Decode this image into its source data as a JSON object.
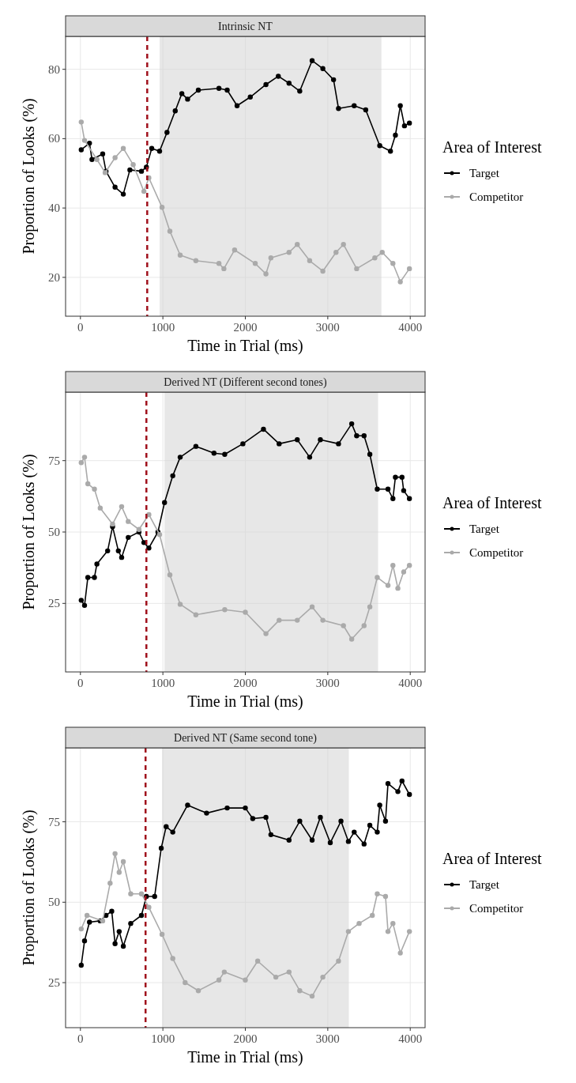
{
  "chart_data": [
    {
      "type": "line",
      "title": "Intrinsic NT",
      "xlabel": "Time in Trial (ms)",
      "ylabel": "Proportion of Looks (%)",
      "legend_title": "Area of Interest",
      "legend": "right",
      "grid": true,
      "marker": "circle",
      "xlim": [
        -180,
        4180
      ],
      "ylim": [
        8.8,
        89.5
      ],
      "xticks": [
        0,
        1000,
        2000,
        3000,
        4000
      ],
      "yticks": [
        20,
        40,
        60,
        80
      ],
      "ref_lines": [
        {
          "axis": "x",
          "value": 810,
          "color": "#a0101c",
          "line_style": "dashed"
        }
      ],
      "bands": [
        {
          "axis": "x",
          "from": 960,
          "to": 3650,
          "color": "#d4d4d4"
        }
      ],
      "series": [
        {
          "name": "Target",
          "color": "#000000",
          "x": [
            10,
            110,
            140,
            270,
            310,
            420,
            520,
            600,
            740,
            800,
            865,
            960,
            1050,
            1150,
            1230,
            1300,
            1430,
            1680,
            1780,
            1900,
            2060,
            2250,
            2400,
            2530,
            2660,
            2810,
            2940,
            3070,
            3130,
            3320,
            3460,
            3630,
            3760,
            3820,
            3880,
            3930,
            3990
          ],
          "values": [
            56.8,
            58.7,
            54,
            55.6,
            50.6,
            46,
            44,
            51,
            50.6,
            51.8,
            57.2,
            56.4,
            61.8,
            68,
            73,
            71.4,
            74,
            74.5,
            74,
            69.5,
            72,
            75.6,
            78,
            76,
            73.7,
            82.5,
            80.2,
            77,
            68.7,
            69.5,
            68.3,
            58,
            56.4,
            61,
            69.5,
            63.7,
            64.5
          ]
        },
        {
          "name": "Competitor",
          "color": "#aaaaaa",
          "x": [
            10,
            50,
            200,
            300,
            420,
            520,
            640,
            770,
            830,
            990,
            1085,
            1210,
            1400,
            1680,
            1740,
            1870,
            2120,
            2250,
            2310,
            2530,
            2630,
            2780,
            2940,
            3100,
            3190,
            3350,
            3570,
            3660,
            3790,
            3880,
            3990
          ],
          "values": [
            64.8,
            59.5,
            54,
            50.2,
            54.5,
            57.2,
            52.5,
            44.8,
            48.7,
            40.2,
            33.3,
            26.4,
            24.8,
            24,
            22.5,
            27.9,
            24,
            21,
            25.6,
            27.2,
            29.5,
            24.8,
            21.8,
            27.2,
            29.5,
            22.5,
            25.6,
            27.2,
            24,
            18.7,
            22.5
          ]
        }
      ]
    },
    {
      "type": "line",
      "title": "Derived NT (Different second tones)",
      "xlabel": "Time in Trial (ms)",
      "ylabel": "Proportion of Looks (%)",
      "legend_title": "Area of Interest",
      "legend": "right",
      "grid": true,
      "marker": "circle",
      "xlim": [
        -180,
        4180
      ],
      "ylim": [
        1,
        99
      ],
      "xticks": [
        0,
        1000,
        2000,
        3000,
        4000
      ],
      "yticks": [
        25,
        50,
        75
      ],
      "ref_lines": [
        {
          "axis": "x",
          "value": 800,
          "color": "#a0101c",
          "line_style": "dashed"
        }
      ],
      "bands": [
        {
          "axis": "x",
          "from": 1020,
          "to": 3610,
          "color": "#d4d4d4"
        }
      ],
      "series": [
        {
          "name": "Target",
          "color": "#000000",
          "x": [
            10,
            50,
            90,
            170,
            200,
            330,
            390,
            460,
            500,
            580,
            710,
            770,
            830,
            940,
            1020,
            1120,
            1210,
            1400,
            1620,
            1750,
            1970,
            2220,
            2410,
            2630,
            2780,
            2910,
            3130,
            3290,
            3350,
            3440,
            3510,
            3600,
            3730,
            3790,
            3820,
            3900,
            3920,
            3990
          ],
          "values": [
            26.1,
            24.3,
            34.1,
            34.1,
            38.8,
            43.4,
            51.9,
            43.4,
            41.1,
            48.1,
            50,
            46.3,
            44.4,
            50,
            60.3,
            69.7,
            76.2,
            80,
            77.6,
            77.2,
            80.9,
            86,
            80.9,
            82.3,
            76.2,
            82.3,
            80.9,
            87.9,
            83.7,
            83.7,
            77.2,
            65,
            65,
            61.7,
            69.2,
            69.2,
            64.5,
            61.7
          ]
        },
        {
          "name": "Competitor",
          "color": "#aaaaaa",
          "x": [
            10,
            50,
            90,
            170,
            240,
            390,
            500,
            580,
            710,
            830,
            960,
            1085,
            1210,
            1400,
            1750,
            2000,
            2250,
            2410,
            2630,
            2810,
            2940,
            3190,
            3290,
            3440,
            3510,
            3600,
            3730,
            3790,
            3850,
            3920,
            3990
          ],
          "values": [
            74.3,
            76.2,
            66.9,
            65,
            58.4,
            52.8,
            58.9,
            53.7,
            50.9,
            56.1,
            49.1,
            35,
            24.7,
            21,
            22.8,
            21.9,
            14.4,
            19.1,
            19.1,
            23.8,
            19.1,
            17.2,
            12.5,
            17.2,
            23.8,
            34.1,
            31.3,
            38.3,
            30.3,
            36,
            38.3
          ]
        }
      ]
    },
    {
      "type": "line",
      "title": "Derived NT (Same second tone)",
      "xlabel": "Time in Trial (ms)",
      "ylabel": "Proportion of Looks (%)",
      "legend_title": "Area of Interest",
      "legend": "right",
      "grid": true,
      "marker": "circle",
      "xlim": [
        -180,
        4180
      ],
      "ylim": [
        11,
        98
      ],
      "xticks": [
        0,
        1000,
        2000,
        3000,
        4000
      ],
      "yticks": [
        25,
        50,
        75
      ],
      "ref_lines": [
        {
          "axis": "x",
          "value": 790,
          "color": "#a0101c",
          "line_style": "dashed"
        }
      ],
      "bands": [
        {
          "axis": "x",
          "from": 990,
          "to": 3255,
          "color": "#d4d4d4"
        }
      ],
      "series": [
        {
          "name": "Target",
          "color": "#000000",
          "x": [
            10,
            50,
            110,
            240,
            310,
            380,
            420,
            470,
            520,
            610,
            740,
            800,
            900,
            980,
            1040,
            1120,
            1300,
            1530,
            1780,
            2000,
            2090,
            2250,
            2310,
            2530,
            2660,
            2810,
            2910,
            3030,
            3160,
            3250,
            3320,
            3440,
            3510,
            3600,
            3630,
            3700,
            3730,
            3850,
            3900,
            3990
          ],
          "values": [
            30.4,
            38,
            43.8,
            44.2,
            45.9,
            47.2,
            37.1,
            40.9,
            36.3,
            43.4,
            45.9,
            51.8,
            51.8,
            66.8,
            73.5,
            71.8,
            80.2,
            77.7,
            79.3,
            79.3,
            76,
            76.4,
            71,
            69.3,
            75.2,
            69.3,
            76.4,
            68.5,
            75.2,
            68.9,
            71.8,
            68.1,
            73.9,
            71.8,
            80.2,
            75.2,
            86.9,
            84.4,
            87.7,
            83.5
          ]
        },
        {
          "name": "Competitor",
          "color": "#aaaaaa",
          "x": [
            10,
            80,
            270,
            360,
            420,
            470,
            520,
            610,
            740,
            830,
            990,
            1120,
            1270,
            1430,
            1680,
            1745,
            2000,
            2150,
            2370,
            2530,
            2660,
            2810,
            2940,
            3130,
            3250,
            3380,
            3540,
            3600,
            3700,
            3730,
            3790,
            3880,
            3990
          ],
          "values": [
            41.7,
            45.9,
            44.2,
            55.9,
            65.1,
            59.3,
            62.6,
            52.6,
            52.6,
            48.4,
            40,
            32.5,
            25,
            22.5,
            25.8,
            28.3,
            25.8,
            31.7,
            26.7,
            28.3,
            22.5,
            20.8,
            26.7,
            31.7,
            40.9,
            43.4,
            45.9,
            52.6,
            51.8,
            40.9,
            43.4,
            34.2,
            40.9
          ]
        }
      ]
    }
  ]
}
